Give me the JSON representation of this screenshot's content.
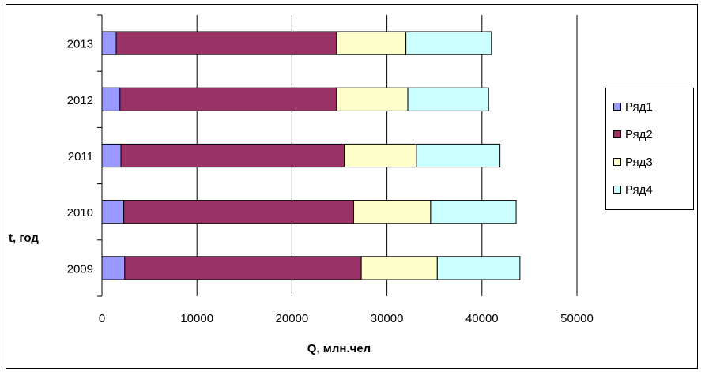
{
  "chart_data": {
    "type": "bar",
    "orientation": "horizontal",
    "stacked": true,
    "categories": [
      "2009",
      "2010",
      "2011",
      "2012",
      "2013"
    ],
    "series": [
      {
        "name": "Ряд1",
        "color": "#9999FF",
        "values": [
          2400,
          2300,
          2000,
          1900,
          1500
        ]
      },
      {
        "name": "Ряд2",
        "color": "#993366",
        "values": [
          24900,
          24200,
          23500,
          22800,
          23200
        ]
      },
      {
        "name": "Ряд3",
        "color": "#FFFFCC",
        "values": [
          8000,
          8100,
          7600,
          7500,
          7300
        ]
      },
      {
        "name": "Ряд4",
        "color": "#CCFFFF",
        "values": [
          8700,
          9000,
          8800,
          8500,
          9000
        ]
      }
    ],
    "xlabel": "Q, млн.чел",
    "ylabel": "t, год",
    "xlim": [
      0,
      50000
    ],
    "x_ticks": [
      "0",
      "10000",
      "20000",
      "30000",
      "40000",
      "50000"
    ],
    "grid": "vertical",
    "legend_position": "right"
  }
}
